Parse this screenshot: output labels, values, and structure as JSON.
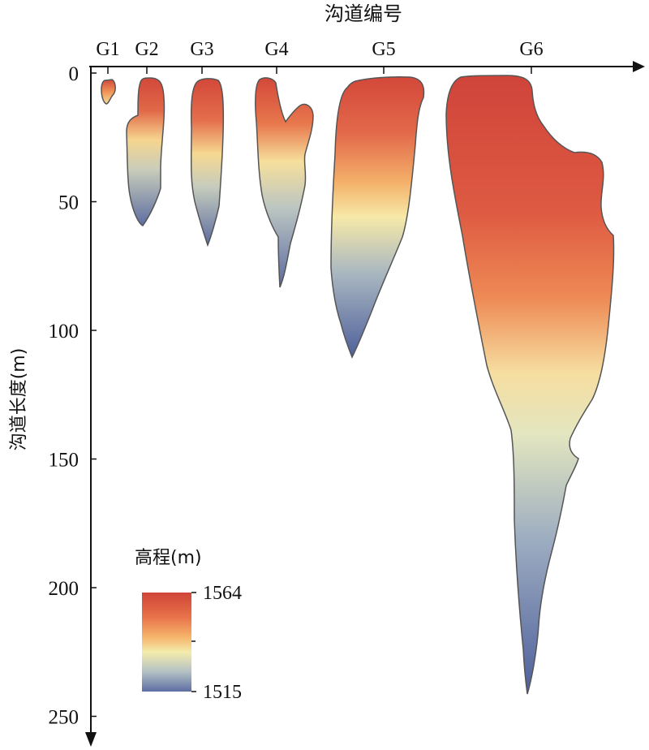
{
  "chart_data": {
    "type": "heatmap",
    "x_title": "沟道编号",
    "y_title": "沟道长度(m)",
    "gullies": [
      {
        "name": "G1",
        "length": 10
      },
      {
        "name": "G2",
        "length": 60
      },
      {
        "name": "G3",
        "length": 68
      },
      {
        "name": "G4",
        "length": 84
      },
      {
        "name": "G5",
        "length": 111
      },
      {
        "name": "G6",
        "length": 241
      }
    ],
    "y_ticks": [
      0,
      50,
      100,
      150,
      200,
      250
    ],
    "y_range": [
      0,
      260
    ],
    "y_direction": "downward",
    "legend": {
      "title": "高程(m)",
      "max_label": "1564",
      "min_label": "1515",
      "max": 1564,
      "min": 1515,
      "colors": [
        "#cf4437",
        "#e8734a",
        "#f5b46b",
        "#f4ecab",
        "#b3c1c4",
        "#5d6da2"
      ]
    },
    "grid": false
  }
}
